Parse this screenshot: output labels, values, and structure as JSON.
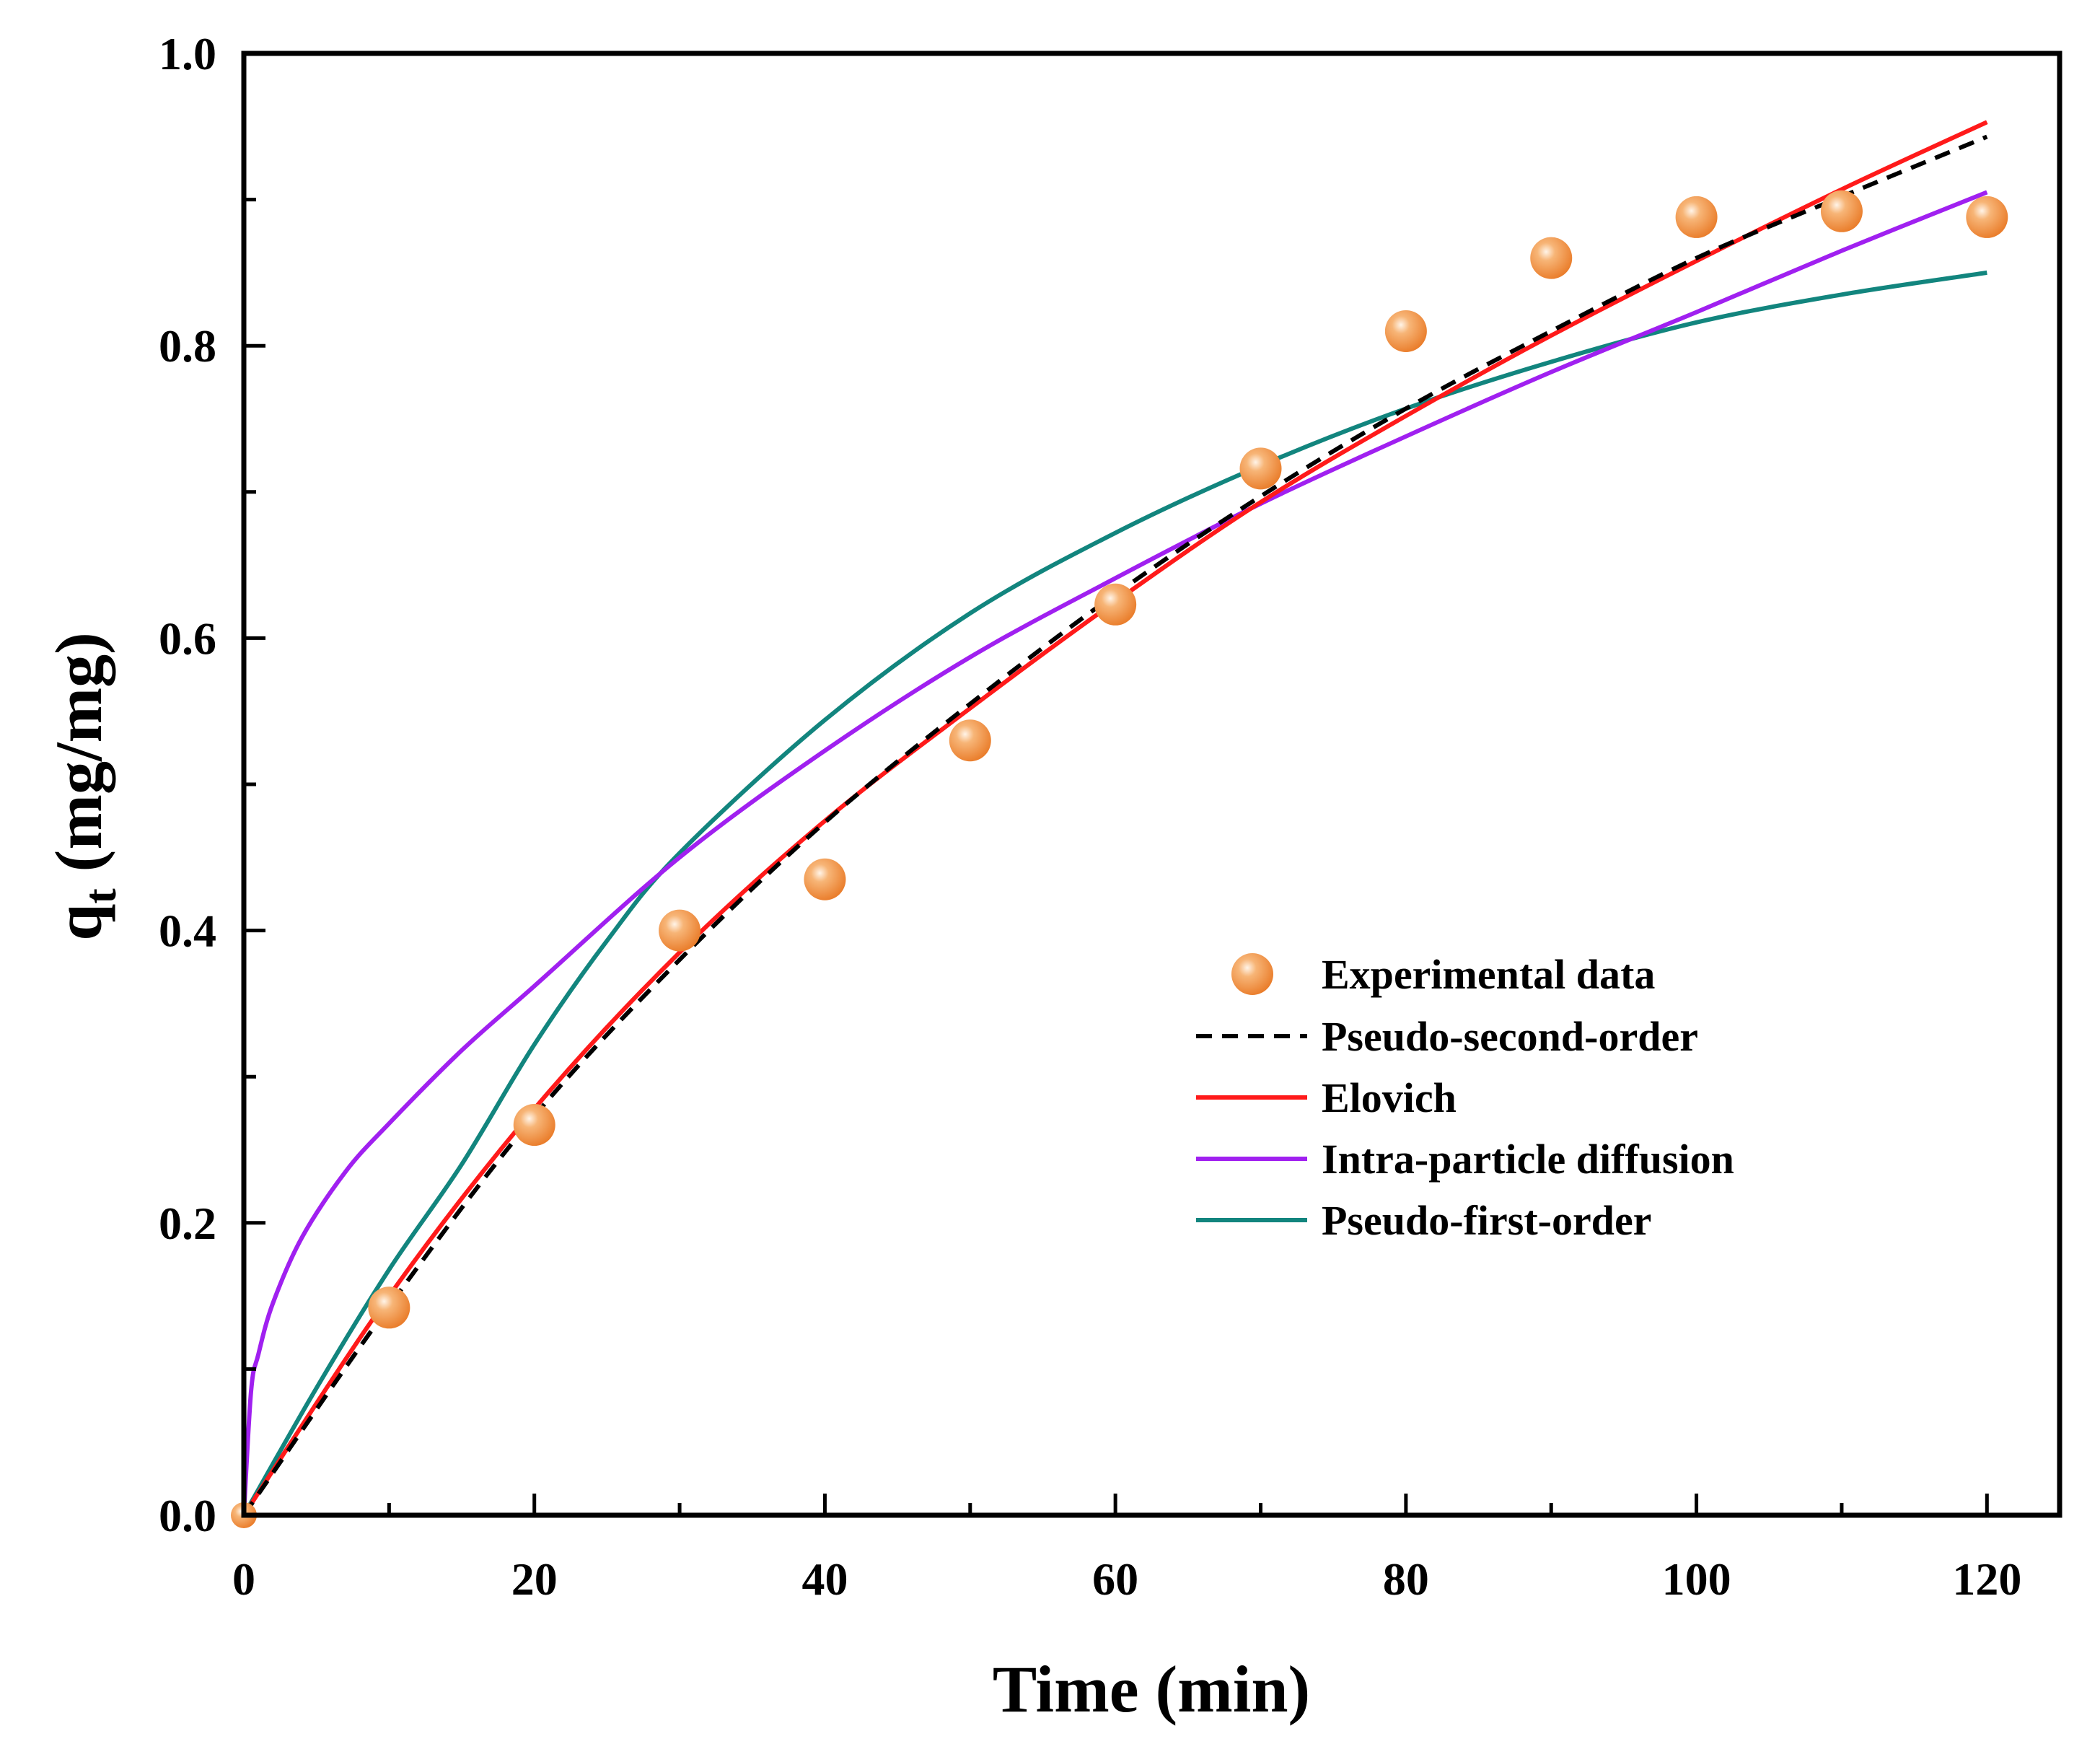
{
  "chart_data": {
    "type": "line",
    "title": "",
    "xlabel": "Time (min)",
    "ylabel_main": "q",
    "ylabel_sub": "t",
    "ylabel_unit": " (mg/mg)",
    "xlim": [
      0,
      125
    ],
    "ylim": [
      0,
      1.0
    ],
    "xticks": [
      "0",
      "20",
      "40",
      "60",
      "80",
      "100",
      "120"
    ],
    "yticks": [
      "0.0",
      "0.2",
      "0.4",
      "0.6",
      "0.8",
      "1.0"
    ],
    "legend_position": "lower-right",
    "scatter": {
      "name": "Experimental data",
      "color": "#f39a4e",
      "x": [
        0,
        10,
        20,
        30,
        40,
        50,
        60,
        70,
        80,
        90,
        100,
        110,
        120
      ],
      "y": [
        0.0,
        0.142,
        0.267,
        0.4,
        0.435,
        0.53,
        0.623,
        0.716,
        0.81,
        0.86,
        0.888,
        0.892,
        0.888
      ]
    },
    "series": [
      {
        "name": "Pseudo-second-order",
        "color": "#000000",
        "dash": true,
        "x": [
          0,
          10,
          20,
          30,
          40,
          50,
          60,
          70,
          80,
          90,
          100,
          110,
          120
        ],
        "y": [
          0.0,
          0.143,
          0.273,
          0.38,
          0.474,
          0.555,
          0.63,
          0.697,
          0.757,
          0.81,
          0.86,
          0.902,
          0.943
        ]
      },
      {
        "name": "Elovich",
        "color": "#ff1a1a",
        "dash": false,
        "x": [
          0,
          10,
          20,
          30,
          40,
          50,
          60,
          70,
          80,
          90,
          100,
          110,
          120
        ],
        "y": [
          0.0,
          0.15,
          0.278,
          0.385,
          0.475,
          0.552,
          0.625,
          0.693,
          0.752,
          0.807,
          0.858,
          0.907,
          0.953
        ]
      },
      {
        "name": "Intra-particle diffusion",
        "color": "#a020f0",
        "dash": false,
        "x": [
          0,
          0.5,
          1,
          2,
          4,
          7,
          10,
          15,
          20,
          30,
          40,
          50,
          60,
          70,
          80,
          90,
          100,
          110,
          120
        ],
        "y": [
          0.0,
          0.085,
          0.11,
          0.145,
          0.19,
          0.235,
          0.268,
          0.318,
          0.362,
          0.45,
          0.523,
          0.587,
          0.641,
          0.692,
          0.738,
          0.782,
          0.823,
          0.865,
          0.905
        ]
      },
      {
        "name": "Pseudo-first-order",
        "color": "#12857e",
        "dash": false,
        "x": [
          0,
          5,
          10,
          15,
          20,
          25,
          30,
          40,
          50,
          60,
          70,
          80,
          90,
          100,
          110,
          120
        ],
        "y": [
          0.0,
          0.087,
          0.168,
          0.24,
          0.322,
          0.393,
          0.453,
          0.544,
          0.617,
          0.672,
          0.718,
          0.757,
          0.789,
          0.816,
          0.835,
          0.85
        ]
      }
    ]
  }
}
